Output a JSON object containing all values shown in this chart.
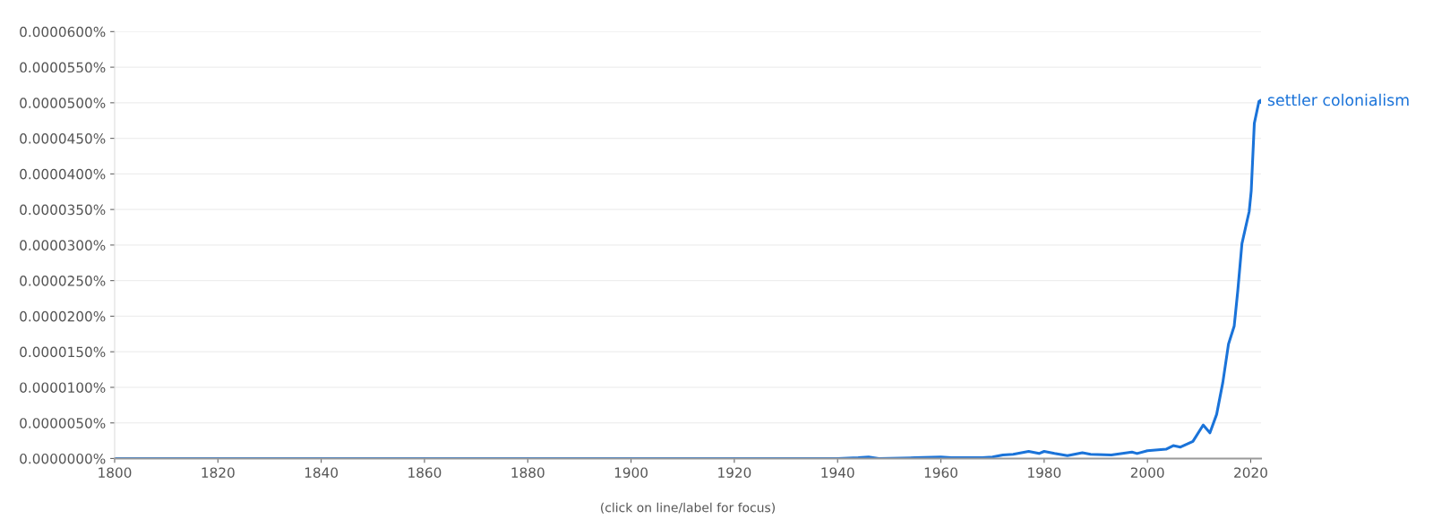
{
  "chart_data": {
    "type": "line",
    "x": [
      1800,
      1900,
      1940,
      1944,
      1946,
      1948,
      1955,
      1960,
      1962,
      1968,
      1970,
      1972,
      1974,
      1977,
      1979,
      1980,
      1982,
      1984.5,
      1987.4,
      1989,
      1993,
      1997,
      1998,
      2000,
      2003.6,
      2005,
      2006.4,
      2008.8,
      2010.8,
      2012.1,
      2013.4,
      2014.6,
      2015.7,
      2016.8,
      2017.5,
      2018.3,
      2019.7,
      2020.1,
      2020.7,
      2021.6,
      2022
    ],
    "series": [
      {
        "name": "settler colonialism",
        "color": "#1a73d9",
        "values": [
          0,
          0,
          0,
          1e-07,
          2e-07,
          0,
          1e-07,
          2e-07,
          1e-07,
          1e-07,
          2e-07,
          5e-07,
          6e-07,
          1e-06,
          7e-07,
          1e-06,
          7e-07,
          4e-07,
          8e-07,
          6e-07,
          5e-07,
          9e-07,
          7e-07,
          1.1e-06,
          1.3e-06,
          1.8e-06,
          1.6e-06,
          2.4e-06,
          4.7e-06,
          3.6e-06,
          6.2e-06,
          1.07e-05,
          1.61e-05,
          1.86e-05,
          2.36e-05,
          3.02e-05,
          3.47e-05,
          3.76e-05,
          4.71e-05,
          5.02e-05,
          5.02e-05
        ]
      }
    ],
    "xlim": [
      1800,
      2022
    ],
    "xticks": [
      1800,
      1820,
      1840,
      1860,
      1880,
      1900,
      1920,
      1940,
      1960,
      1980,
      2000,
      2020
    ],
    "ylim": [
      0,
      6e-05
    ],
    "yticks": [
      {
        "value": 0,
        "label": "0.0000000%"
      },
      {
        "value": 5e-06,
        "label": "0.0000050%"
      },
      {
        "value": 1e-05,
        "label": "0.0000100%"
      },
      {
        "value": 1.5e-05,
        "label": "0.0000150%"
      },
      {
        "value": 2e-05,
        "label": "0.0000200%"
      },
      {
        "value": 2.5e-05,
        "label": "0.0000250%"
      },
      {
        "value": 3e-05,
        "label": "0.0000300%"
      },
      {
        "value": 3.5e-05,
        "label": "0.0000350%"
      },
      {
        "value": 4e-05,
        "label": "0.0000400%"
      },
      {
        "value": 4.5e-05,
        "label": "0.0000450%"
      },
      {
        "value": 5e-05,
        "label": "0.0000500%"
      },
      {
        "value": 5.5e-05,
        "label": "0.0000550%"
      },
      {
        "value": 6e-05,
        "label": "0.0000600%"
      }
    ],
    "grid": "y",
    "legend": false,
    "marker": "none",
    "line_style": "solid",
    "annotations": [
      "(click on line/label for focus)"
    ]
  }
}
